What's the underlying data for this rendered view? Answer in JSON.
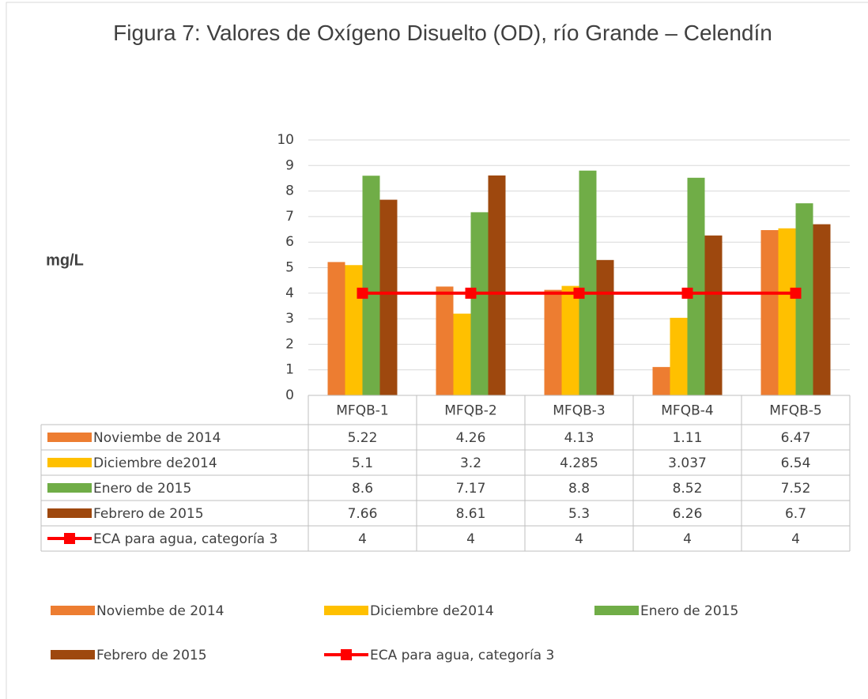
{
  "chart_data": {
    "type": "bar",
    "title": "Figura 7: Valores de Oxígeno Disuelto (OD), río Grande – Celendín",
    "y_label": "mg/L",
    "categories": [
      "MFQB-1",
      "MFQB-2",
      "MFQB-3",
      "MFQB-4",
      "MFQB-5"
    ],
    "series": [
      {
        "name": "Noviembe de 2014",
        "color": "#ED7D31",
        "values": [
          5.22,
          4.26,
          4.13,
          1.11,
          6.47
        ]
      },
      {
        "name": "Diciembre de2014",
        "color": "#FFC000",
        "values": [
          5.1,
          3.2,
          4.285,
          3.037,
          6.54
        ]
      },
      {
        "name": "Enero de 2015",
        "color": "#70AD47",
        "values": [
          8.6,
          7.17,
          8.8,
          8.52,
          7.52
        ]
      },
      {
        "name": "Febrero de 2015",
        "color": "#9E480E",
        "values": [
          7.66,
          8.61,
          5.3,
          6.26,
          6.7
        ]
      },
      {
        "name": "ECA para agua, categoría  3",
        "color": "#FF0000",
        "type": "line",
        "values": [
          4,
          4,
          4,
          4,
          4
        ]
      }
    ],
    "ylim": [
      0,
      10
    ],
    "yticks": [
      0,
      1,
      2,
      3,
      4,
      5,
      6,
      7,
      8,
      9,
      10
    ],
    "grid": true,
    "data_table": true,
    "legend": "bottom"
  }
}
